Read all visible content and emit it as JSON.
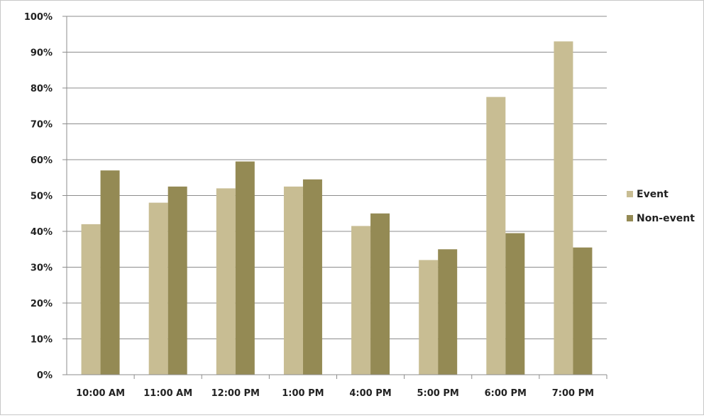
{
  "chart_data": {
    "type": "bar",
    "title": "",
    "xlabel": "",
    "ylabel": "",
    "ylim": [
      0,
      100
    ],
    "y_ticks": [
      "0%",
      "10%",
      "20%",
      "30%",
      "40%",
      "50%",
      "60%",
      "70%",
      "80%",
      "90%",
      "100%"
    ],
    "y_tick_values": [
      0,
      10,
      20,
      30,
      40,
      50,
      60,
      70,
      80,
      90,
      100
    ],
    "grid": true,
    "legend_position": "right",
    "categories": [
      "10:00 AM",
      "11:00 AM",
      "12:00 PM",
      "1:00 PM",
      "4:00 PM",
      "5:00 PM",
      "6:00 PM",
      "7:00 PM"
    ],
    "series": [
      {
        "name": "Event",
        "color": "#c8bd93",
        "values": [
          42,
          48,
          52,
          52.5,
          41.5,
          32,
          77.5,
          93
        ]
      },
      {
        "name": "Non-event",
        "color": "#948a54",
        "values": [
          57,
          52.5,
          59.5,
          54.5,
          45,
          35,
          39.5,
          35.5
        ]
      }
    ]
  }
}
